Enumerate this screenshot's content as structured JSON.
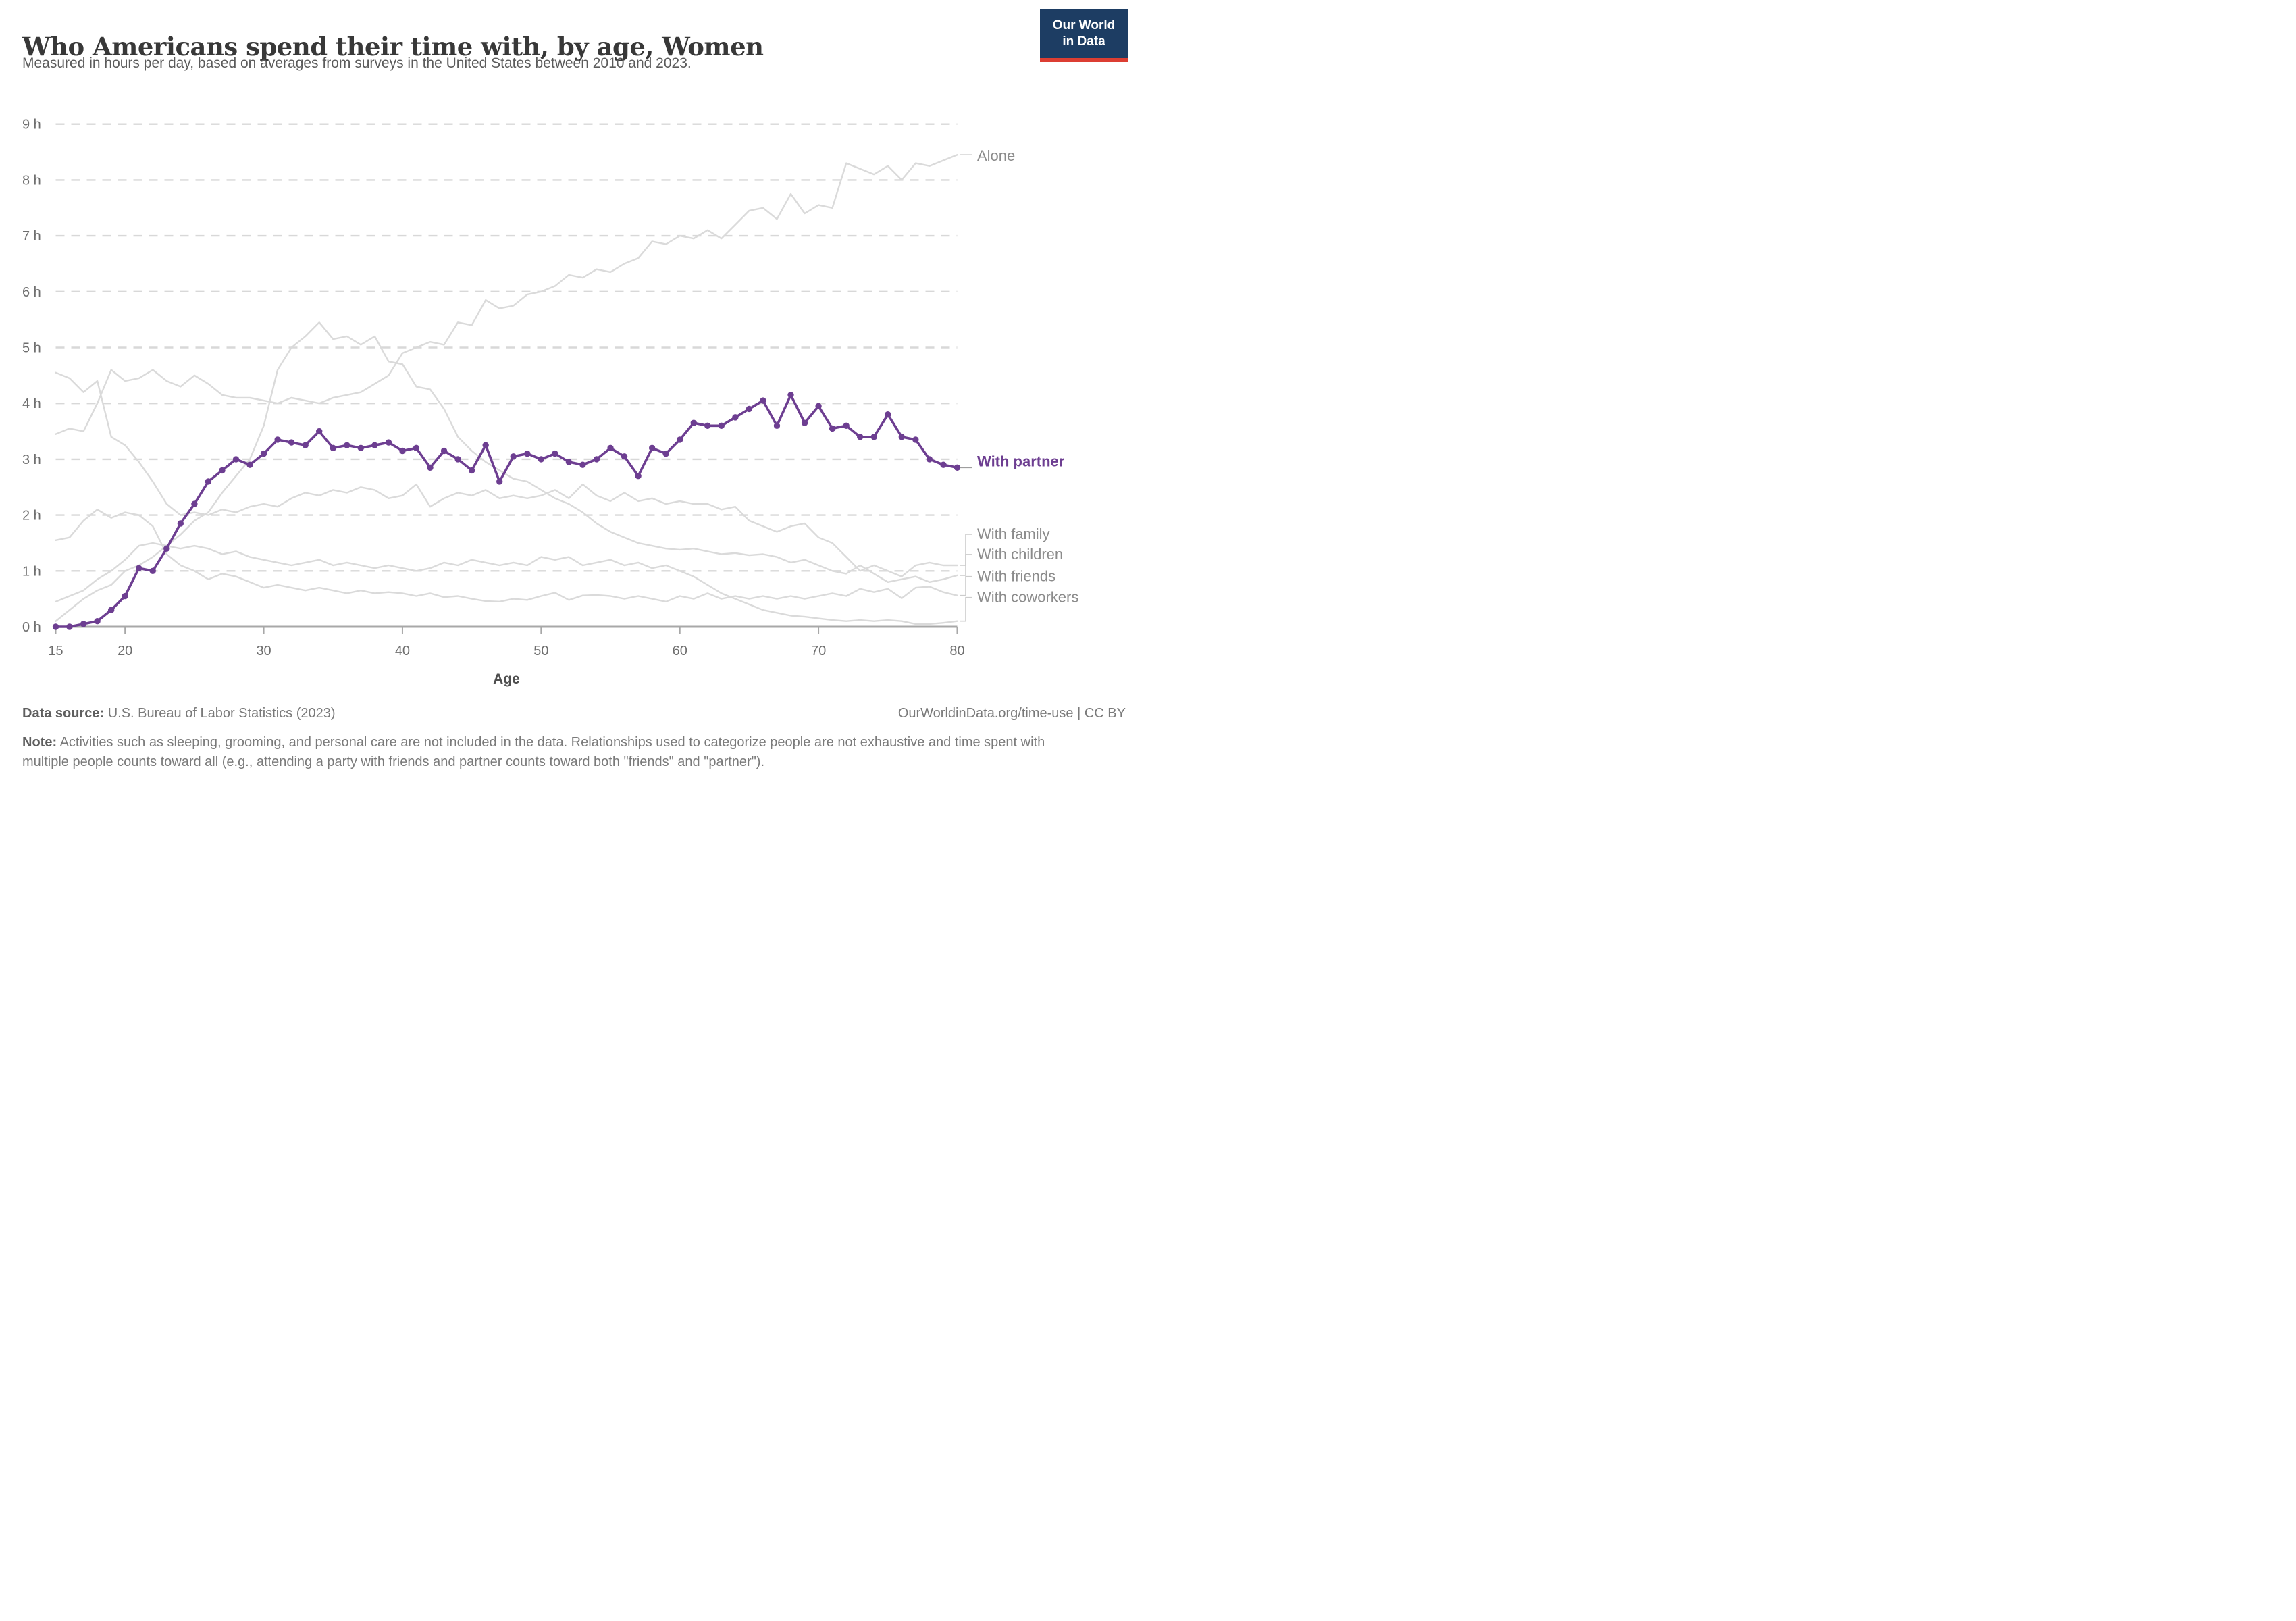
{
  "header": {
    "title": "Who Americans spend their time with, by age, Women",
    "subtitle": "Measured in hours per day, based on averages from surveys in the United States between 2010 and 2023."
  },
  "logo": {
    "line1": "Our World",
    "line2": "in Data",
    "bg_color": "#1d3d63",
    "bar_color": "#dc3e32"
  },
  "axis": {
    "x_label": "Age",
    "y_unit": "h",
    "y_ticks": [
      0,
      1,
      2,
      3,
      4,
      5,
      6,
      7,
      8,
      9
    ],
    "x_ticks": [
      15,
      20,
      30,
      40,
      50,
      60,
      70,
      80
    ],
    "x_range": [
      15,
      80
    ],
    "y_range": [
      0,
      9
    ]
  },
  "chart_data": {
    "type": "line",
    "title": "Who Americans spend their time with, by age, Women",
    "xlabel": "Age",
    "ylabel": "hours per day",
    "xlim": [
      15,
      80
    ],
    "ylim": [
      0,
      9
    ],
    "grid": "horizontal-dashed",
    "legend_position": "right-end-labels",
    "ages": [
      15,
      16,
      17,
      18,
      19,
      20,
      21,
      22,
      23,
      24,
      25,
      26,
      27,
      28,
      29,
      30,
      31,
      32,
      33,
      34,
      35,
      36,
      37,
      38,
      39,
      40,
      41,
      42,
      43,
      44,
      45,
      46,
      47,
      48,
      49,
      50,
      51,
      52,
      53,
      54,
      55,
      56,
      57,
      58,
      59,
      60,
      61,
      62,
      63,
      64,
      65,
      66,
      67,
      68,
      69,
      70,
      71,
      72,
      73,
      74,
      75,
      76,
      77,
      78,
      79,
      80
    ],
    "series": [
      {
        "name": "alone",
        "label": "Alone",
        "color": "#dadada",
        "text_color": "#8b8b8b",
        "marker": false,
        "values": [
          3.45,
          3.55,
          3.5,
          4.0,
          4.6,
          4.4,
          4.45,
          4.6,
          4.4,
          4.3,
          4.5,
          4.35,
          4.15,
          4.1,
          4.1,
          4.05,
          4.0,
          4.1,
          4.05,
          4.0,
          4.1,
          4.15,
          4.2,
          4.35,
          4.5,
          4.9,
          5.0,
          5.1,
          5.05,
          5.45,
          5.4,
          5.85,
          5.7,
          5.75,
          5.95,
          6.0,
          6.1,
          6.3,
          6.25,
          6.4,
          6.35,
          6.5,
          6.6,
          6.9,
          6.85,
          7.0,
          6.95,
          7.1,
          6.95,
          7.2,
          7.45,
          7.5,
          7.3,
          7.75,
          7.4,
          7.55,
          7.5,
          8.3,
          8.2,
          8.1,
          8.25,
          8.0,
          8.3,
          8.25,
          8.35,
          8.45
        ]
      },
      {
        "name": "family",
        "label": "With family",
        "color": "#dadada",
        "text_color": "#8b8b8b",
        "marker": false,
        "values": [
          4.55,
          4.45,
          4.2,
          4.4,
          3.4,
          3.25,
          2.95,
          2.6,
          2.2,
          2.0,
          2.05,
          2.0,
          2.1,
          2.05,
          2.15,
          2.2,
          2.15,
          2.3,
          2.4,
          2.35,
          2.45,
          2.4,
          2.5,
          2.45,
          2.3,
          2.35,
          2.55,
          2.15,
          2.3,
          2.4,
          2.35,
          2.45,
          2.3,
          2.35,
          2.3,
          2.35,
          2.45,
          2.3,
          2.55,
          2.35,
          2.25,
          2.4,
          2.25,
          2.3,
          2.2,
          2.25,
          2.2,
          2.2,
          2.1,
          2.15,
          1.9,
          1.8,
          1.7,
          1.8,
          1.85,
          1.6,
          1.5,
          1.25,
          1.0,
          1.1,
          1.0,
          0.9,
          1.1,
          1.15,
          1.1,
          1.1
        ]
      },
      {
        "name": "children",
        "label": "With children",
        "color": "#dadada",
        "text_color": "#8b8b8b",
        "marker": false,
        "values": [
          0.1,
          0.3,
          0.5,
          0.65,
          0.75,
          1.0,
          1.1,
          1.25,
          1.45,
          1.65,
          1.9,
          2.05,
          2.4,
          2.7,
          3.0,
          3.6,
          4.6,
          5.0,
          5.2,
          5.45,
          5.15,
          5.2,
          5.05,
          5.2,
          4.75,
          4.7,
          4.3,
          4.25,
          3.9,
          3.4,
          3.15,
          2.95,
          2.8,
          2.65,
          2.6,
          2.45,
          2.3,
          2.2,
          2.05,
          1.85,
          1.7,
          1.6,
          1.5,
          1.45,
          1.4,
          1.38,
          1.4,
          1.35,
          1.3,
          1.32,
          1.28,
          1.3,
          1.25,
          1.15,
          1.2,
          1.1,
          1.0,
          0.95,
          1.1,
          0.95,
          0.8,
          0.85,
          0.9,
          0.8,
          0.85,
          0.92
        ]
      },
      {
        "name": "friends",
        "label": "With friends",
        "color": "#dadada",
        "text_color": "#8b8b8b",
        "marker": false,
        "values": [
          1.55,
          1.6,
          1.9,
          2.1,
          1.95,
          2.05,
          2.0,
          1.8,
          1.3,
          1.1,
          1.0,
          0.85,
          0.95,
          0.9,
          0.8,
          0.7,
          0.75,
          0.7,
          0.65,
          0.7,
          0.65,
          0.6,
          0.65,
          0.6,
          0.62,
          0.6,
          0.55,
          0.6,
          0.53,
          0.55,
          0.5,
          0.46,
          0.45,
          0.5,
          0.48,
          0.55,
          0.61,
          0.48,
          0.56,
          0.57,
          0.55,
          0.5,
          0.55,
          0.5,
          0.45,
          0.55,
          0.5,
          0.6,
          0.5,
          0.55,
          0.5,
          0.55,
          0.5,
          0.55,
          0.5,
          0.55,
          0.6,
          0.55,
          0.68,
          0.62,
          0.68,
          0.51,
          0.7,
          0.72,
          0.62,
          0.56
        ]
      },
      {
        "name": "coworkers",
        "label": "With coworkers",
        "color": "#dadada",
        "text_color": "#8b8b8b",
        "marker": false,
        "values": [
          0.45,
          0.55,
          0.65,
          0.85,
          1.0,
          1.2,
          1.45,
          1.5,
          1.45,
          1.4,
          1.45,
          1.4,
          1.3,
          1.35,
          1.25,
          1.2,
          1.15,
          1.1,
          1.15,
          1.2,
          1.1,
          1.15,
          1.1,
          1.05,
          1.1,
          1.05,
          1.0,
          1.05,
          1.15,
          1.1,
          1.2,
          1.15,
          1.1,
          1.15,
          1.1,
          1.25,
          1.2,
          1.25,
          1.1,
          1.15,
          1.2,
          1.1,
          1.15,
          1.05,
          1.1,
          1.0,
          0.9,
          0.75,
          0.6,
          0.5,
          0.4,
          0.3,
          0.25,
          0.2,
          0.18,
          0.15,
          0.12,
          0.1,
          0.12,
          0.1,
          0.12,
          0.1,
          0.05,
          0.05,
          0.07,
          0.1
        ]
      },
      {
        "name": "partner",
        "label": "With partner",
        "color": "#6d3e91",
        "text_color": "#6d3e91",
        "marker": true,
        "values": [
          0.0,
          0.0,
          0.05,
          0.1,
          0.3,
          0.55,
          1.05,
          1.0,
          1.4,
          1.85,
          2.2,
          2.6,
          2.8,
          3.0,
          2.9,
          3.1,
          3.35,
          3.3,
          3.25,
          3.5,
          3.2,
          3.25,
          3.2,
          3.25,
          3.3,
          3.15,
          3.2,
          2.85,
          3.15,
          3.0,
          2.8,
          3.25,
          2.6,
          3.05,
          3.1,
          3.0,
          3.1,
          2.95,
          2.9,
          3.0,
          3.2,
          3.05,
          2.7,
          3.2,
          3.1,
          3.35,
          3.65,
          3.6,
          3.6,
          3.75,
          3.9,
          4.05,
          3.6,
          4.15,
          3.65,
          3.95,
          3.55,
          3.6,
          3.4,
          3.4,
          3.8,
          3.4,
          3.35,
          3.0,
          2.9,
          2.85
        ]
      }
    ]
  },
  "footer": {
    "datasource_label": "Data source:",
    "datasource": " U.S. Bureau of Labor Statistics (2023)",
    "link": "OurWorldinData.org/time-use | CC BY",
    "note_label": "Note:",
    "note": " Activities such as sleeping, grooming, and personal care are not included in the data. Relationships used to categorize people are not exhaustive and time spent with multiple people counts toward all (e.g., attending a party with friends and partner counts toward both \"friends\" and \"partner\")."
  }
}
